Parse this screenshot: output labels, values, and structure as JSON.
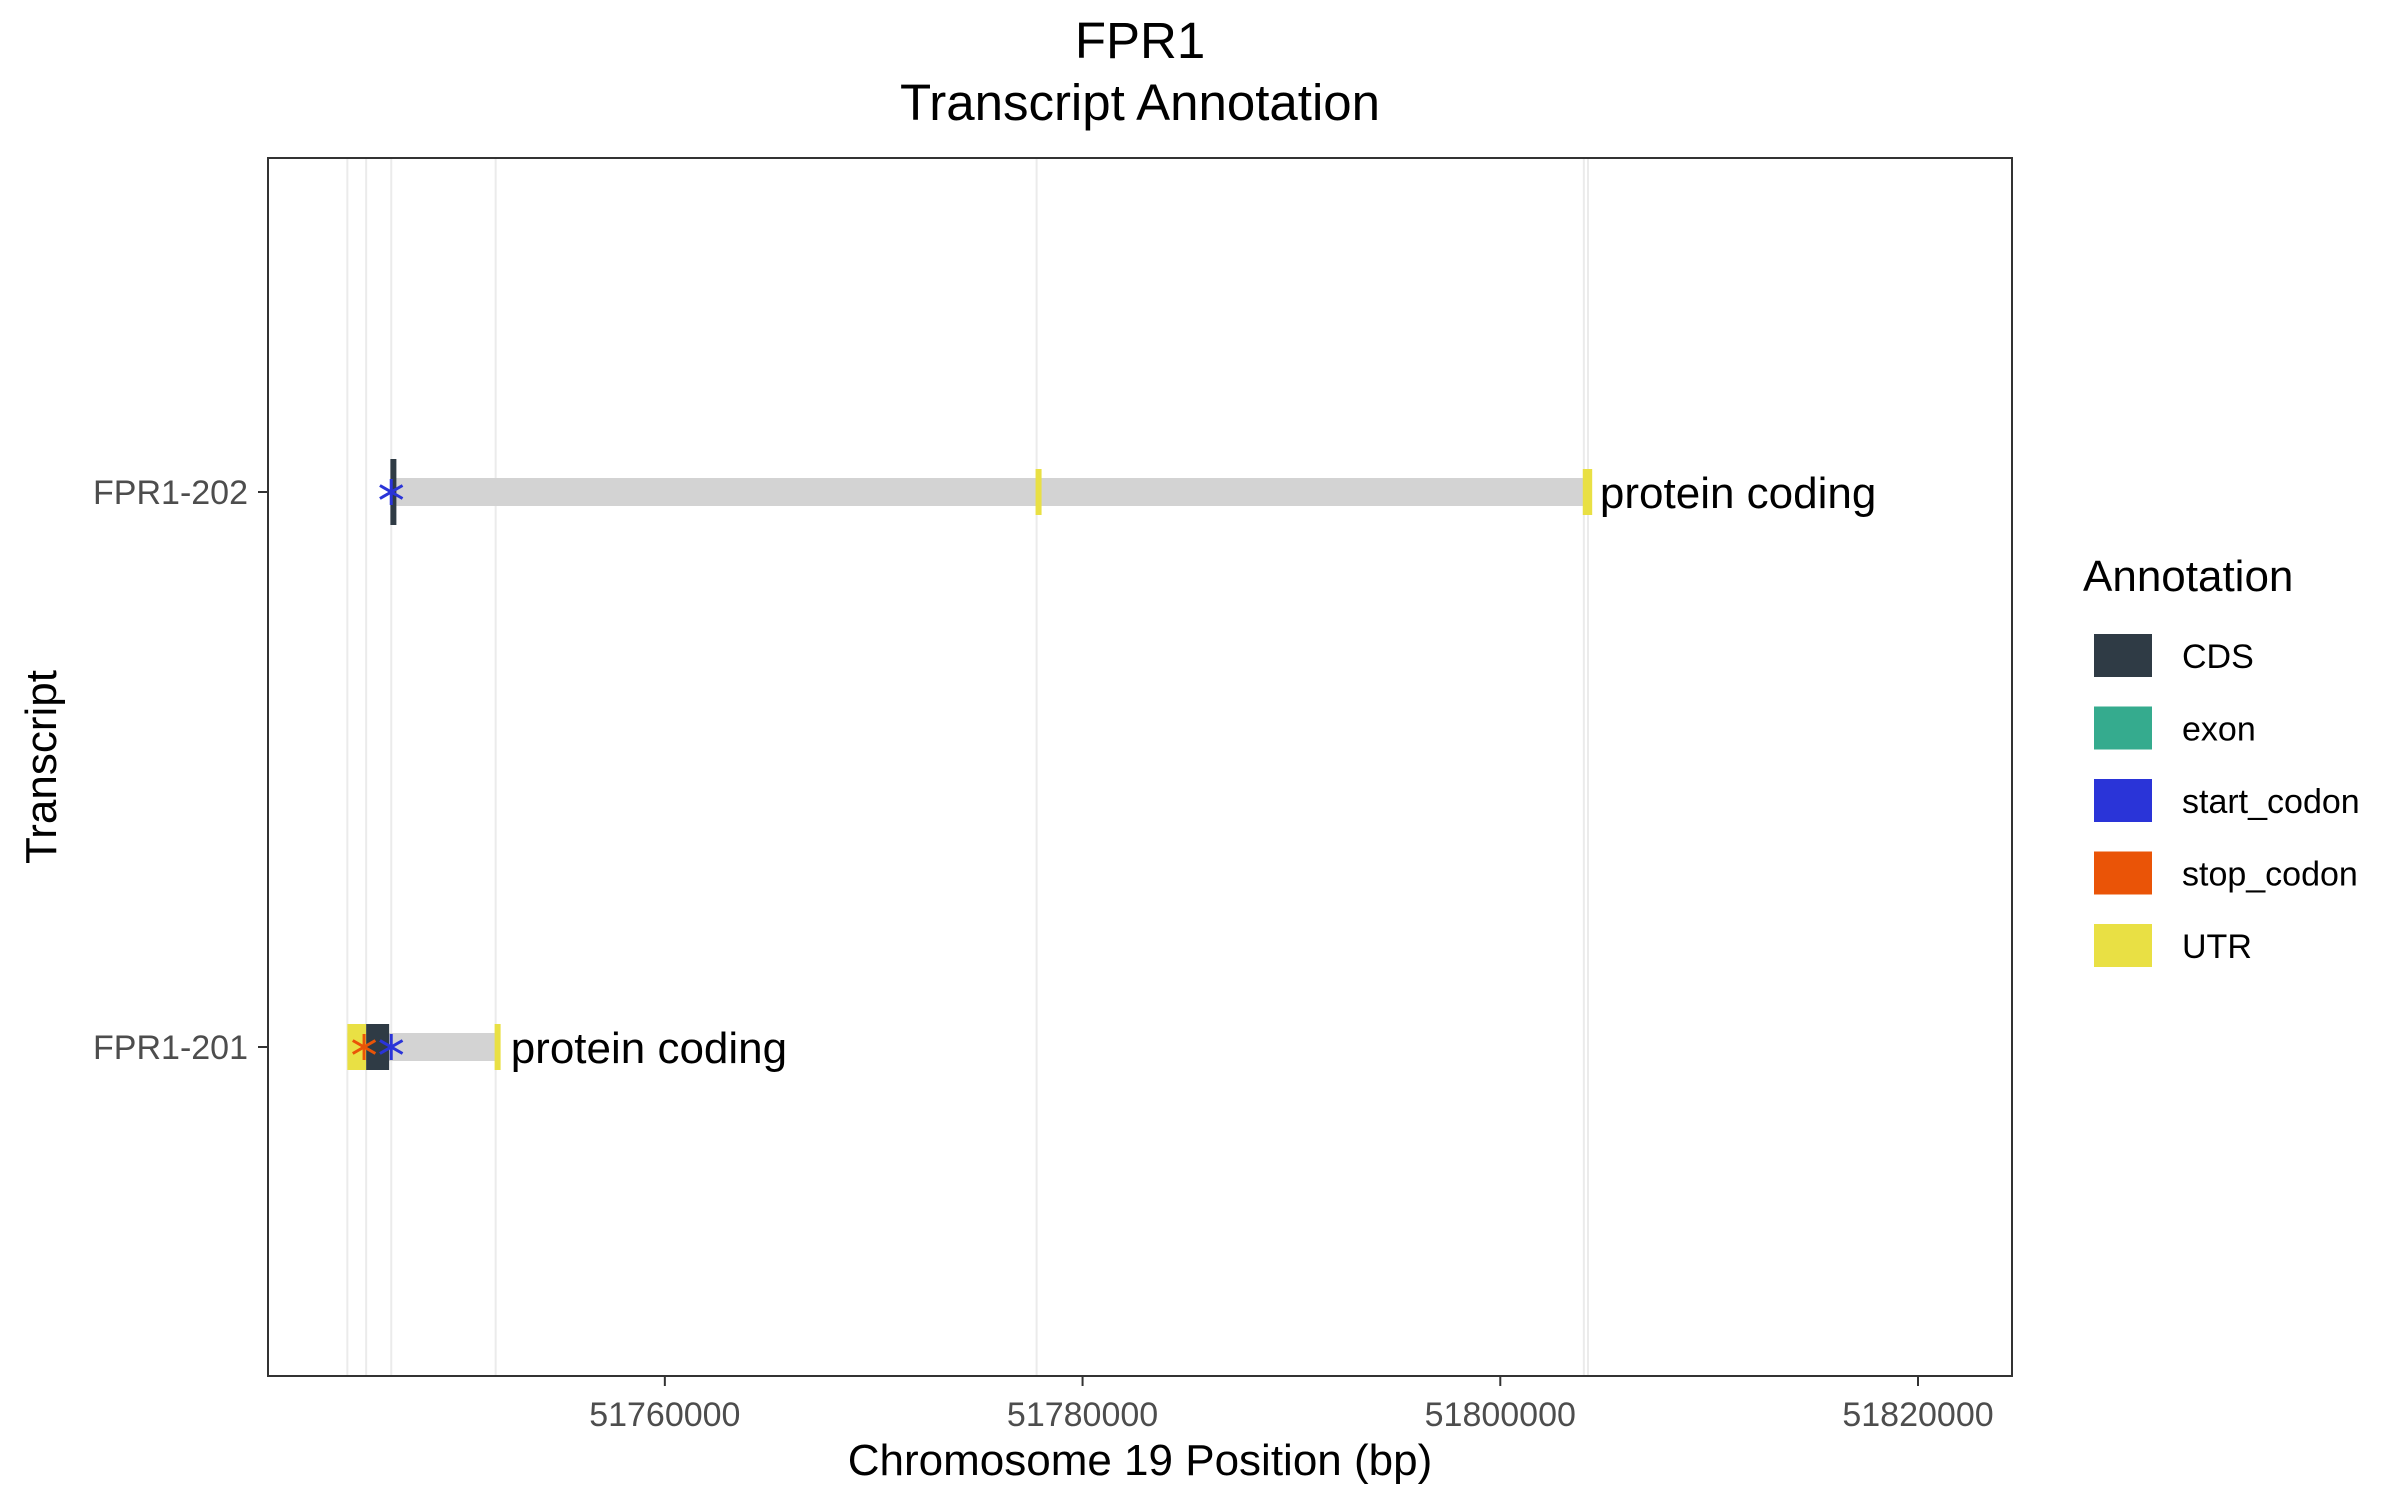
{
  "chart_data": {
    "type": "transcript-annotation",
    "title": "FPR1",
    "subtitle": "Transcript Annotation",
    "xlabel": "Chromosome 19 Position (bp)",
    "ylabel": "Transcript",
    "xlim": [
      51741000,
      51824500
    ],
    "x_ticks": [
      51760000,
      51780000,
      51800000,
      51820000
    ],
    "x_tick_labels": [
      "51760000",
      "51780000",
      "51800000",
      "51820000"
    ],
    "grid": true,
    "legend": {
      "title": "Annotation",
      "placement": "right",
      "items": [
        {
          "key": "CDS",
          "label": "CDS",
          "color": "#2f3b45"
        },
        {
          "key": "exon",
          "label": "exon",
          "color": "#35ab8e"
        },
        {
          "key": "start_codon",
          "label": "start_codon",
          "color": "#2a34d8"
        },
        {
          "key": "stop_codon",
          "label": "stop_codon",
          "color": "#ea5407"
        },
        {
          "key": "UTR",
          "label": "UTR",
          "color": "#e9e044"
        }
      ]
    },
    "transcripts": [
      {
        "id": "FPR1-202",
        "biotype": "protein coding",
        "range": [
          51746900,
          51804100
        ],
        "features": [
          {
            "type": "CDS",
            "start": 51746860,
            "end": 51746940
          },
          {
            "type": "UTR",
            "start": 51777750,
            "end": 51777850
          },
          {
            "type": "UTR",
            "start": 51803950,
            "end": 51804400
          }
        ],
        "codons": [
          {
            "type": "start_codon",
            "position": 51746900
          }
        ]
      },
      {
        "id": "FPR1-201",
        "biotype": "protein coding",
        "range": [
          51744800,
          51751950
        ],
        "features": [
          {
            "type": "UTR",
            "start": 51744800,
            "end": 51745700
          },
          {
            "type": "CDS",
            "start": 51745700,
            "end": 51746800
          },
          {
            "type": "UTR",
            "start": 51751850,
            "end": 51752000
          }
        ],
        "codons": [
          {
            "type": "stop_codon",
            "position": 51745600
          },
          {
            "type": "start_codon",
            "position": 51746900
          }
        ]
      }
    ],
    "grid_lines": [
      51744800,
      51745700,
      51746900,
      51751900,
      51777800,
      51804000,
      51804200
    ]
  }
}
